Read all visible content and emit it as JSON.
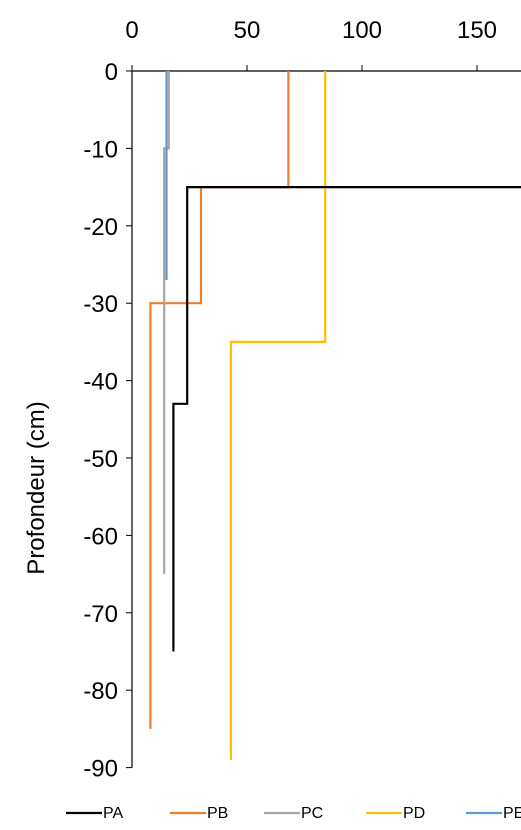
{
  "chart_data": {
    "type": "line",
    "title": "",
    "xlabel": "",
    "ylabel": "Profondeur (cm)",
    "xlim": [
      0,
      160
    ],
    "ylim": [
      -90,
      0
    ],
    "x_ticks": [
      "0",
      "50",
      "100",
      "150"
    ],
    "y_ticks": [
      "0",
      "-10",
      "-20",
      "-30",
      "-40",
      "-50",
      "-60",
      "-70",
      "-80",
      "-90"
    ],
    "x_axis_position": "top",
    "grid": false,
    "legend_position": "bottom",
    "series": [
      {
        "name": "PA",
        "color": "#000000",
        "points": [
          [
            180,
            -15
          ],
          [
            24,
            -15
          ],
          [
            24,
            -43
          ],
          [
            18,
            -43
          ],
          [
            18,
            -75
          ]
        ]
      },
      {
        "name": "PB",
        "color": "#ed7d31",
        "points": [
          [
            68,
            0
          ],
          [
            68,
            -15
          ],
          [
            30,
            -15
          ],
          [
            30,
            -30
          ],
          [
            8,
            -30
          ],
          [
            8,
            -85
          ]
        ]
      },
      {
        "name": "PC",
        "color": "#a5a5a5",
        "points": [
          [
            16,
            0
          ],
          [
            16,
            -10
          ],
          [
            14,
            -10
          ],
          [
            14,
            -65
          ]
        ]
      },
      {
        "name": "PD",
        "color": "#ffc000",
        "points": [
          [
            84,
            0
          ],
          [
            84,
            -35
          ],
          [
            43,
            -35
          ],
          [
            43,
            -90
          ]
        ]
      },
      {
        "name": "PE",
        "color": "#5b9bd5",
        "points": [
          [
            15,
            0
          ],
          [
            15,
            -27
          ]
        ]
      }
    ]
  }
}
